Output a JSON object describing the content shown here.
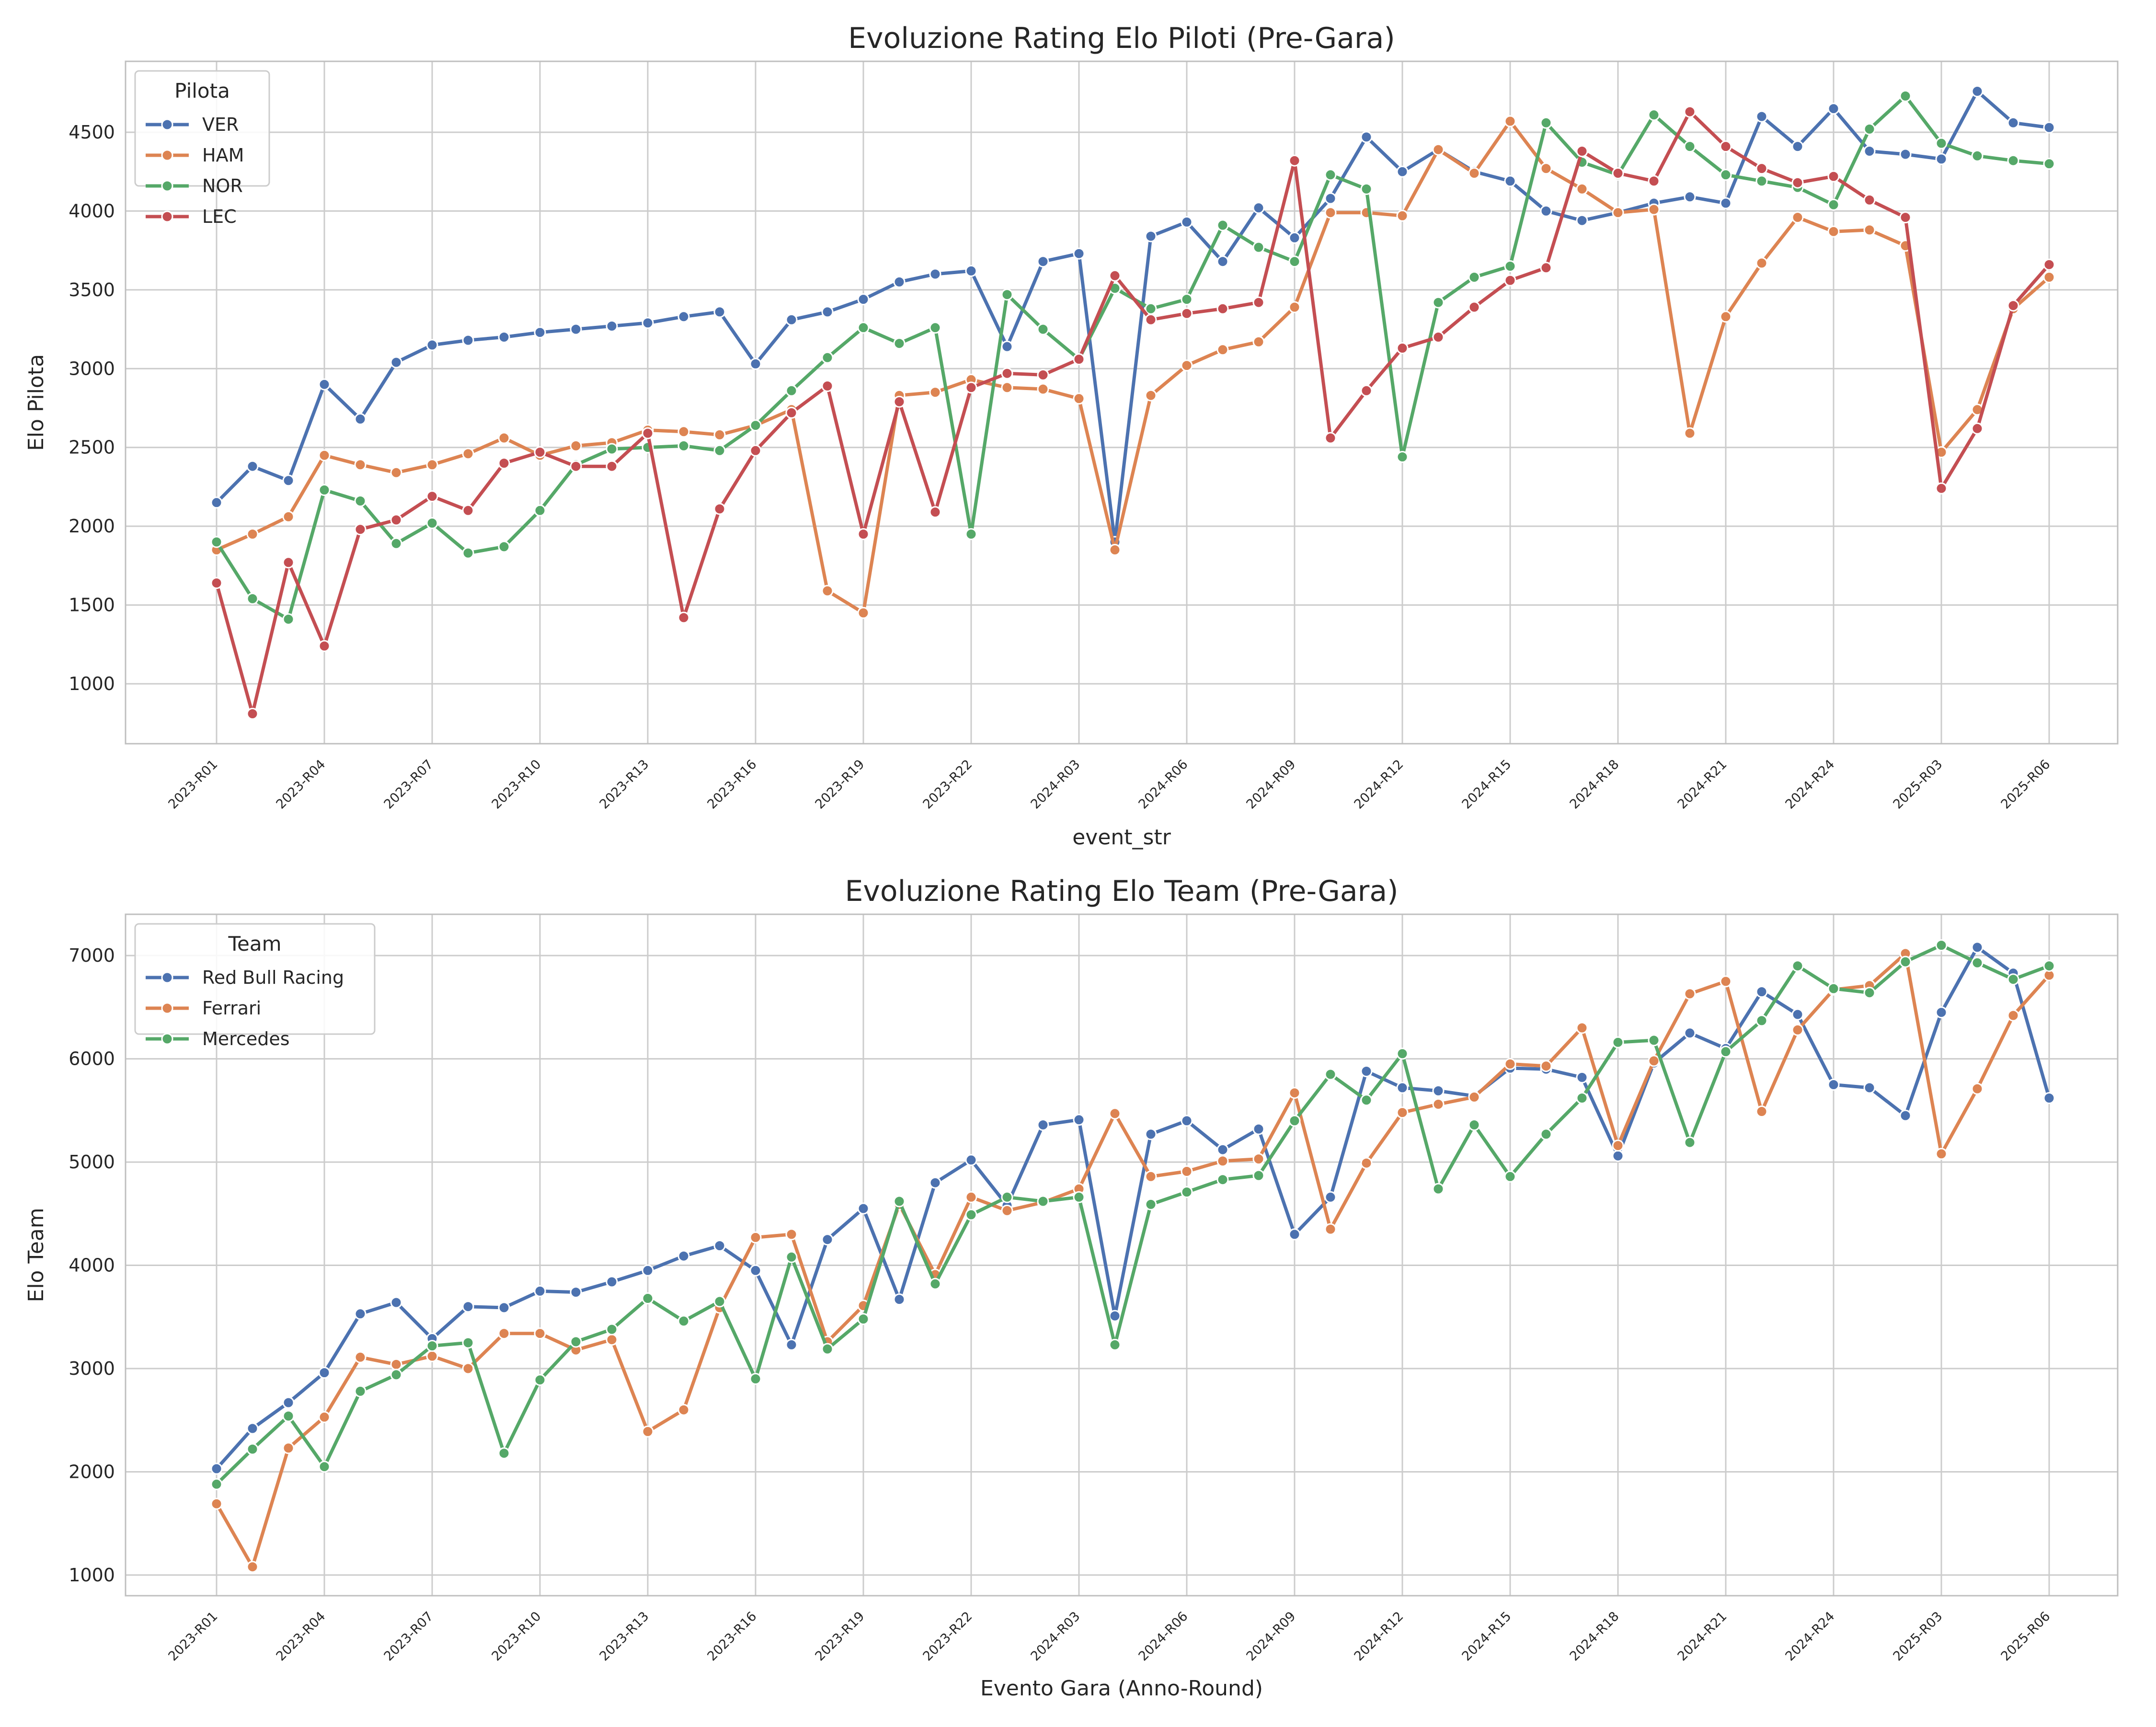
{
  "chart_data": [
    {
      "type": "line",
      "title": "Evoluzione Rating Elo Piloti (Pre-Gara)",
      "xlabel": "event_str",
      "ylabel": "Elo Pilota",
      "ylim": [
        620,
        4950
      ],
      "yticks": [
        1000,
        1500,
        2000,
        2500,
        3000,
        3500,
        4000,
        4500
      ],
      "tick_labels": [
        "2023-R01",
        "2023-R04",
        "2023-R07",
        "2023-R10",
        "2023-R13",
        "2023-R16",
        "2023-R19",
        "2023-R22",
        "2024-R03",
        "2024-R06",
        "2024-R09",
        "2024-R12",
        "2024-R15",
        "2024-R18",
        "2024-R21",
        "2024-R24",
        "2025-R03",
        "2025-R06"
      ],
      "grid": true,
      "legend": {
        "title": "Pilota",
        "position": "top-left"
      },
      "series": [
        {
          "name": "VER",
          "color": "#4c72b0",
          "values": [
            2150,
            2380,
            2290,
            2900,
            2680,
            3040,
            3150,
            3180,
            3200,
            3230,
            3250,
            3270,
            3290,
            3330,
            3360,
            3030,
            3310,
            3360,
            3440,
            3550,
            3600,
            3620,
            3140,
            3680,
            3730,
            1900,
            3840,
            3930,
            3680,
            4020,
            3830,
            4080,
            4470,
            4250,
            4390,
            4250,
            4190,
            4000,
            3940,
            3990,
            4050,
            4090,
            4050,
            4600,
            4410,
            4650,
            4380,
            4360,
            4330,
            4760,
            4560,
            4530
          ]
        },
        {
          "name": "HAM",
          "color": "#dd8452",
          "values": [
            1850,
            1950,
            2060,
            2450,
            2390,
            2340,
            2390,
            2460,
            2560,
            2450,
            2510,
            2530,
            2610,
            2600,
            2580,
            2640,
            2740,
            1590,
            1450,
            2830,
            2850,
            2930,
            2880,
            2870,
            2810,
            1850,
            2830,
            3020,
            3120,
            3170,
            3390,
            3990,
            3990,
            3970,
            4390,
            4240,
            4570,
            4270,
            4140,
            3990,
            4010,
            2590,
            3330,
            3670,
            3960,
            3870,
            3880,
            3780,
            2470,
            2740,
            3380,
            3580
          ]
        },
        {
          "name": "NOR",
          "color": "#55a868",
          "values": [
            1900,
            1540,
            1410,
            2230,
            2160,
            1890,
            2020,
            1830,
            1870,
            2100,
            2390,
            2490,
            2500,
            2510,
            2480,
            2640,
            2860,
            3070,
            3260,
            3160,
            3260,
            1950,
            3470,
            3250,
            3060,
            3510,
            3380,
            3440,
            3910,
            3770,
            3680,
            4230,
            4140,
            2440,
            3420,
            3580,
            3650,
            4560,
            4310,
            4230,
            4610,
            4410,
            4230,
            4190,
            4150,
            4040,
            4520,
            4730,
            4430,
            4350,
            4320,
            4300
          ]
        },
        {
          "name": "LEC",
          "color": "#c44e52",
          "values": [
            1640,
            810,
            1770,
            1240,
            1980,
            2040,
            2190,
            2100,
            2400,
            2470,
            2380,
            2380,
            2590,
            1420,
            2110,
            2480,
            2720,
            2890,
            1950,
            2790,
            2090,
            2880,
            2970,
            2960,
            3060,
            3590,
            3310,
            3350,
            3380,
            3420,
            4320,
            2560,
            2860,
            3130,
            3200,
            3390,
            3560,
            3640,
            4380,
            4240,
            4190,
            4630,
            4410,
            4270,
            4180,
            4220,
            4070,
            3960,
            2240,
            2620,
            3400,
            3660
          ]
        }
      ]
    },
    {
      "type": "line",
      "title": "Evoluzione Rating Elo Team (Pre-Gara)",
      "xlabel": "Evento Gara (Anno-Round)",
      "ylabel": "Elo Team",
      "ylim": [
        800,
        7400
      ],
      "yticks": [
        1000,
        2000,
        3000,
        4000,
        5000,
        6000,
        7000
      ],
      "tick_labels": [
        "2023-R01",
        "2023-R04",
        "2023-R07",
        "2023-R10",
        "2023-R13",
        "2023-R16",
        "2023-R19",
        "2023-R22",
        "2024-R03",
        "2024-R06",
        "2024-R09",
        "2024-R12",
        "2024-R15",
        "2024-R18",
        "2024-R21",
        "2024-R24",
        "2025-R03",
        "2025-R06"
      ],
      "grid": true,
      "legend": {
        "title": "Team",
        "position": "top-left"
      },
      "series": [
        {
          "name": "Red Bull Racing",
          "color": "#4c72b0",
          "values": [
            2030,
            2420,
            2670,
            2960,
            3530,
            3640,
            3290,
            3600,
            3590,
            3750,
            3740,
            3840,
            3950,
            4090,
            4190,
            3950,
            3230,
            4250,
            4550,
            3670,
            4800,
            5020,
            4580,
            5360,
            5410,
            3510,
            5270,
            5400,
            5120,
            5320,
            4300,
            4660,
            5880,
            5720,
            5690,
            5640,
            5910,
            5900,
            5820,
            5060,
            5960,
            6250,
            6100,
            6650,
            6430,
            5750,
            5720,
            5450,
            6450,
            7080,
            6830,
            5620
          ]
        },
        {
          "name": "Ferrari",
          "color": "#dd8452",
          "values": [
            1690,
            1080,
            2230,
            2530,
            3110,
            3040,
            3120,
            3000,
            3340,
            3340,
            3180,
            3280,
            2390,
            2600,
            3590,
            4270,
            4300,
            3260,
            3610,
            4590,
            3910,
            4660,
            4530,
            4610,
            4740,
            5470,
            4860,
            4910,
            5010,
            5030,
            5670,
            4350,
            4990,
            5480,
            5560,
            5630,
            5950,
            5930,
            6300,
            5160,
            5980,
            6630,
            6750,
            5490,
            6280,
            6670,
            6710,
            7020,
            5080,
            5710,
            6420,
            6810
          ]
        },
        {
          "name": "Mercedes",
          "color": "#55a868",
          "values": [
            1880,
            2220,
            2540,
            2050,
            2780,
            2940,
            3220,
            3250,
            2180,
            2890,
            3260,
            3380,
            3680,
            3460,
            3650,
            2900,
            4080,
            3190,
            3480,
            4620,
            3820,
            4490,
            4660,
            4620,
            4660,
            3230,
            4590,
            4710,
            4830,
            4870,
            5400,
            5850,
            5600,
            6050,
            4740,
            5360,
            4860,
            5270,
            5620,
            6160,
            6180,
            5190,
            6070,
            6370,
            6900,
            6680,
            6640,
            6940,
            7100,
            6930,
            6770,
            6900
          ]
        }
      ]
    }
  ]
}
